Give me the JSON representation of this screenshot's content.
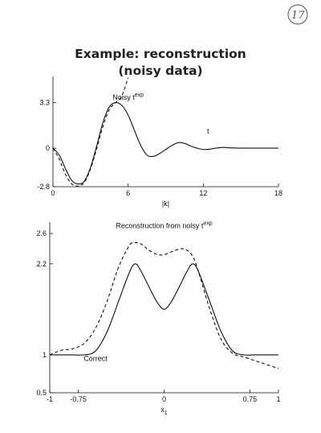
{
  "page_number": "17",
  "title": [
    "Example: reconstruction",
    "(noisy data)"
  ],
  "chart_data": [
    {
      "type": "line",
      "xlabel": "|k|",
      "ylabel": "",
      "xlim": [
        0,
        18
      ],
      "ylim": [
        -2.8,
        5.2
      ],
      "xticks": [
        0,
        6,
        12,
        18
      ],
      "xtick_labels": [
        "0",
        "6",
        "12",
        "18"
      ],
      "yticks": [
        -2.8,
        0,
        3.3
      ],
      "ytick_labels": [
        "-2.8",
        "0",
        "3.3"
      ],
      "grid": false,
      "series": [
        {
          "name": "t",
          "style": "solid",
          "x": [
            0,
            0.5,
            1,
            1.5,
            2,
            2.5,
            3,
            3.5,
            4,
            4.5,
            5,
            5.5,
            6,
            6.5,
            7,
            7.5,
            8,
            8.5,
            9,
            9.5,
            10,
            10.5,
            11,
            11.5,
            12,
            12.5,
            13,
            13.5,
            14,
            15,
            16,
            17,
            18
          ],
          "y": [
            0,
            -0.5,
            -1.5,
            -2.35,
            -2.6,
            -2.4,
            -1.4,
            0.2,
            1.9,
            3.0,
            3.3,
            3.1,
            2.4,
            1.3,
            0.2,
            -0.5,
            -0.6,
            -0.4,
            -0.1,
            0.2,
            0.4,
            0.35,
            0.15,
            0.0,
            -0.1,
            -0.08,
            0.0,
            0.05,
            0.03,
            0.0,
            0.0,
            0.0,
            0.0
          ]
        },
        {
          "name": "Noisy t^exp",
          "style": "dashed",
          "x": [
            0,
            0.5,
            1,
            1.5,
            2,
            2.5,
            3,
            3.5,
            4,
            4.5,
            5,
            5.5,
            6
          ],
          "y": [
            0,
            -0.8,
            -1.9,
            -2.6,
            -2.75,
            -2.5,
            -1.5,
            0.0,
            1.6,
            2.8,
            3.3,
            3.8,
            5.1
          ]
        }
      ],
      "annotations": [
        {
          "text": "Noisy t",
          "sup": "exp",
          "x": 6.0,
          "y": 3.5
        },
        {
          "text": "t",
          "x": 12.3,
          "y": 1.05
        }
      ]
    },
    {
      "type": "line",
      "xlabel": "x",
      "xlabel_sub": "1",
      "ylabel": "",
      "xlim": [
        -1,
        1
      ],
      "ylim": [
        0.5,
        2.75
      ],
      "xticks": [
        -1,
        -0.75,
        0,
        0.75,
        1
      ],
      "xtick_labels": [
        "-1",
        "-0.75",
        "0",
        "0.75",
        "1"
      ],
      "yticks": [
        0.5,
        1,
        2.2,
        2.6
      ],
      "ytick_labels": [
        "0.5",
        "1",
        "2.2",
        "2.6"
      ],
      "grid": false,
      "series": [
        {
          "name": "Correct",
          "style": "solid",
          "x": [
            -1,
            -0.9,
            -0.8,
            -0.7,
            -0.6,
            -0.5,
            -0.4,
            -0.3,
            -0.25,
            -0.2,
            -0.15,
            -0.1,
            -0.05,
            0,
            0.05,
            0.1,
            0.15,
            0.2,
            0.25,
            0.3,
            0.4,
            0.5,
            0.6,
            0.7,
            0.8,
            0.9,
            1
          ],
          "y": [
            1,
            1,
            1,
            1.0,
            1.05,
            1.3,
            1.7,
            2.1,
            2.2,
            2.1,
            1.95,
            1.8,
            1.67,
            1.6,
            1.67,
            1.8,
            1.95,
            2.1,
            2.2,
            2.1,
            1.7,
            1.3,
            1.05,
            1.0,
            1.0,
            1.0,
            1.0
          ]
        },
        {
          "name": "Reconstruction from noisy t^exp",
          "style": "dashed",
          "x": [
            -1,
            -0.9,
            -0.8,
            -0.7,
            -0.6,
            -0.5,
            -0.4,
            -0.3,
            -0.25,
            -0.2,
            -0.15,
            -0.1,
            -0.05,
            0,
            0.05,
            0.1,
            0.15,
            0.2,
            0.25,
            0.3,
            0.4,
            0.5,
            0.6,
            0.7,
            0.8,
            0.9,
            1
          ],
          "y": [
            1.0,
            1.06,
            1.08,
            1.15,
            1.35,
            1.7,
            2.15,
            2.45,
            2.48,
            2.46,
            2.4,
            2.35,
            2.32,
            2.32,
            2.35,
            2.38,
            2.4,
            2.38,
            2.3,
            2.1,
            1.6,
            1.2,
            1.02,
            0.97,
            0.92,
            0.87,
            0.82
          ]
        }
      ],
      "annotations": [
        {
          "text": "Reconstruction from noisy t",
          "sup": "exp",
          "x": 0.0,
          "y": 2.67
        },
        {
          "text": "Correct",
          "x": -0.6,
          "y": 0.92
        }
      ]
    }
  ]
}
